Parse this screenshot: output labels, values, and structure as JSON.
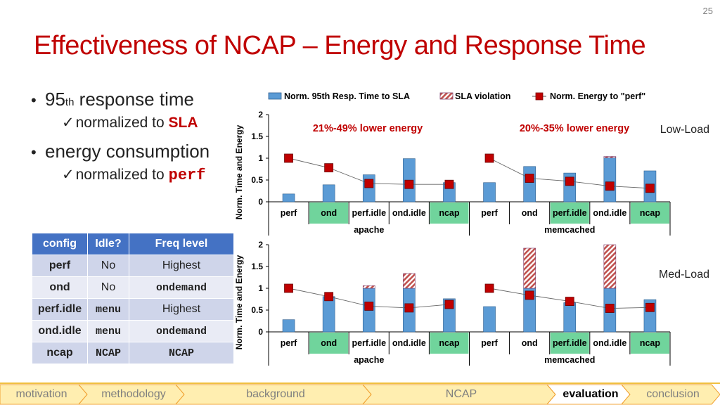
{
  "page_number": "25",
  "title": "Effectiveness of NCAP – Energy and Response Time",
  "bullets": {
    "b1_pre": "95",
    "b1_sup": "th",
    "b1_post": " response time",
    "b1_sub_pre": "normalized to ",
    "b1_sub_hl": "SLA",
    "b2": "energy consumption",
    "b2_sub_pre": "normalized to",
    "b2_sub_hl": "perf",
    "check": "✓",
    "dot": "•"
  },
  "config_table": {
    "headers": [
      "config",
      "Idle?",
      "Freq level"
    ],
    "rows": [
      [
        "perf",
        "No",
        "Highest"
      ],
      [
        "ond",
        "No",
        "ondemand"
      ],
      [
        "perf.idle",
        "menu",
        "Highest"
      ],
      [
        "ond.idle",
        "menu",
        "ondemand"
      ],
      [
        "ncap",
        "NCAP",
        "NCAP"
      ]
    ]
  },
  "chart_data": {
    "type": "bar",
    "legend": [
      "Norm. 95th Resp. Time to SLA",
      "SLA violation",
      "Norm. Energy to \"perf\""
    ],
    "ylabel": "Norm. Time and Energy",
    "ylim": [
      0,
      2
    ],
    "yticks": [
      "0",
      "0.5",
      "1",
      "1.5",
      "2"
    ],
    "groups": [
      "apache",
      "memcached"
    ],
    "categories": [
      "perf",
      "ond",
      "perf.idle",
      "ond.idle",
      "ncap",
      "perf",
      "ond",
      "perf.idle",
      "ond.idle",
      "ncap"
    ],
    "highlighted_categories": [
      1,
      4,
      7,
      9
    ],
    "colors": {
      "bar": "#5b9bd5",
      "bar_edge": "#2e5f8f",
      "violation": "#c0504d",
      "energy": "#c00000",
      "highlight": "#70d49c"
    },
    "panels": [
      {
        "name": "Low-Load",
        "annotations": [
          "21%-49% lower energy",
          "20%-35% lower energy"
        ],
        "resp_time": [
          0.18,
          0.39,
          0.62,
          0.99,
          0.44,
          0.44,
          0.81,
          0.66,
          1.01,
          0.71
        ],
        "sla_violation": [
          0,
          0,
          0,
          0,
          0,
          0,
          0,
          0,
          0.03,
          0
        ],
        "energy": [
          1.0,
          0.78,
          0.42,
          0.4,
          0.4,
          1.0,
          0.54,
          0.47,
          0.36,
          0.31
        ]
      },
      {
        "name": "Med-Load",
        "annotations": [],
        "resp_time": [
          0.28,
          0.81,
          1.0,
          1.0,
          0.76,
          0.58,
          1.0,
          0.67,
          1.0,
          0.74
        ],
        "sla_violation": [
          0,
          0,
          0.06,
          0.34,
          0,
          0,
          0.92,
          0,
          1.0,
          0
        ],
        "energy": [
          1.0,
          0.81,
          0.59,
          0.55,
          0.63,
          1.0,
          0.84,
          0.7,
          0.54,
          0.56
        ]
      }
    ]
  },
  "footer": {
    "items": [
      "motivation",
      "methodology",
      "background",
      "NCAP",
      "evaluation",
      "conclusion"
    ],
    "active": "evaluation",
    "colors": {
      "fill": "#ffeeb0",
      "active_fill": "#ffffff",
      "border": "#f0a030",
      "rule": "#f0c040"
    }
  }
}
